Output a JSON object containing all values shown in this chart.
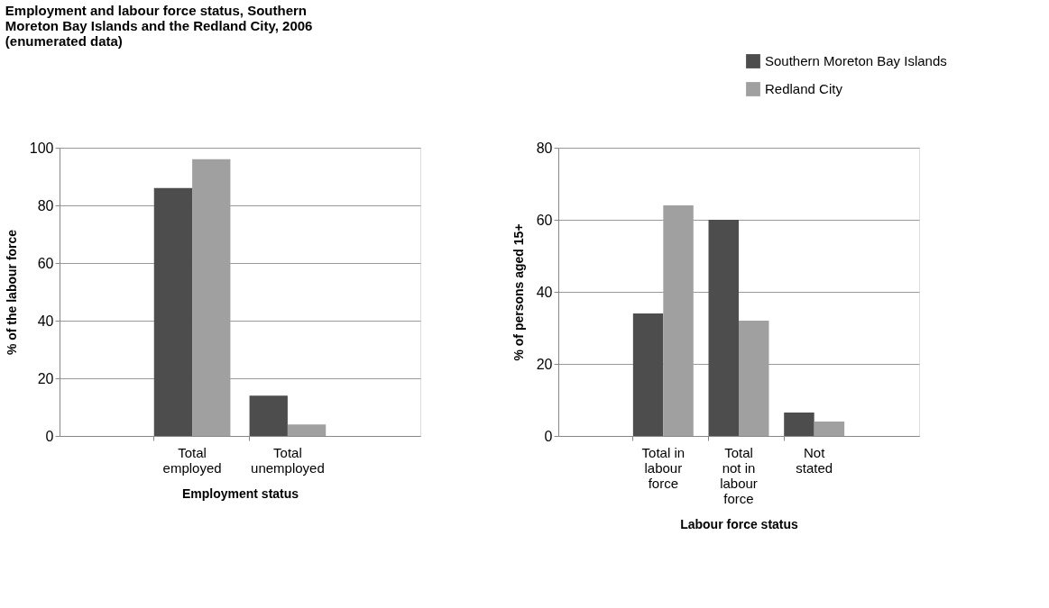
{
  "chart_data": [
    {
      "type": "bar",
      "title": "Employment and labour force status, Southern Moreton Bay Islands and the Redland City, 2006 (enumerated data)",
      "xlabel": "Employment status",
      "ylabel": "% of the labour force",
      "categories": [
        "Total employed",
        "Total unemployed"
      ],
      "series": [
        {
          "name": "Southern Moreton Bay Islands",
          "color": "#4d4d4d",
          "values": [
            86,
            14
          ]
        },
        {
          "name": "Redland City",
          "color": "#a0a0a0",
          "values": [
            96,
            4
          ]
        }
      ],
      "ylim": [
        0,
        100
      ],
      "yticks": [
        0,
        20,
        40,
        60,
        80,
        100
      ],
      "grid": "y",
      "legend": "top right"
    },
    {
      "type": "bar",
      "xlabel": "Labour force status",
      "ylabel": "% of persons aged 15+",
      "categories": [
        "Total in labour force",
        "Total not in labour force",
        "Not stated"
      ],
      "series": [
        {
          "name": "Southern Moreton Bay Islands",
          "color": "#4d4d4d",
          "values": [
            34,
            60,
            6.5
          ]
        },
        {
          "name": "Redland City",
          "color": "#a0a0a0",
          "values": [
            64,
            32,
            4
          ]
        }
      ],
      "ylim": [
        0,
        80
      ],
      "yticks": [
        0,
        20,
        40,
        60,
        80
      ],
      "grid": "y",
      "legend": "top right"
    }
  ]
}
